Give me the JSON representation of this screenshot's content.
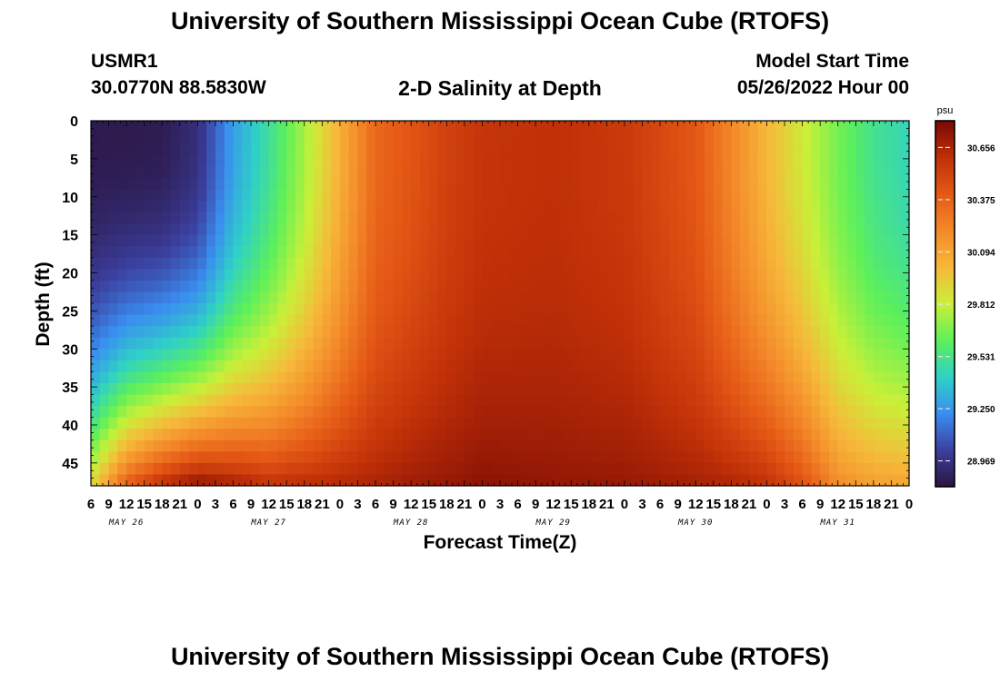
{
  "page": {
    "title": "University of Southern Mississippi Ocean Cube (RTOFS)",
    "footer_title": "University of Southern Mississippi Ocean Cube (RTOFS)",
    "station_id": "USMR1",
    "station_coords": "30.0770N  88.5830W",
    "subtitle": "2-D Salinity at Depth",
    "model_start_label": "Model Start Time",
    "model_start_value": "05/26/2022 Hour 00"
  },
  "colors": {
    "background": "#ffffff",
    "colormap": [
      "#2b1440",
      "#3b3f9e",
      "#3a8df0",
      "#2fd0c8",
      "#5cf05a",
      "#c9f038",
      "#f6b93a",
      "#f48a2a",
      "#e55a16",
      "#c03008",
      "#7a0a04"
    ]
  },
  "chart_data": {
    "type": "heatmap",
    "ylabel": "Depth (ft)",
    "xlabel": "Forecast Time(Z)",
    "ylim": [
      0,
      48
    ],
    "y_ticks": [
      0,
      5,
      10,
      15,
      20,
      25,
      30,
      35,
      40,
      45
    ],
    "x_range_hours": [
      6,
      144
    ],
    "x_tick_labels": [
      "6",
      "9",
      "12",
      "15",
      "18",
      "21",
      "0",
      "3",
      "6",
      "9",
      "12",
      "15",
      "18",
      "21",
      "0",
      "3",
      "6",
      "9",
      "12",
      "15",
      "18",
      "21",
      "0",
      "3",
      "6",
      "9",
      "12",
      "15",
      "18",
      "21",
      "0",
      "3",
      "6",
      "9",
      "12",
      "15",
      "18",
      "21",
      "0",
      "3",
      "6",
      "9",
      "12",
      "15",
      "18",
      "21",
      "0"
    ],
    "date_labels": [
      "MAY 26",
      "MAY 27",
      "MAY 28",
      "MAY 29",
      "MAY 30",
      "MAY 31"
    ],
    "colorbar": {
      "unit": "psu",
      "ticks": [
        30.656,
        30.375,
        30.094,
        29.812,
        29.531,
        29.25,
        28.969
      ],
      "range": [
        28.83,
        30.8
      ]
    },
    "time_hours": [
      6,
      12,
      18,
      24,
      30,
      36,
      42,
      48,
      54,
      60,
      66,
      72,
      84,
      96,
      108,
      114,
      120,
      126,
      132,
      138,
      144
    ],
    "surface_salinity": [
      28.86,
      28.86,
      28.87,
      28.95,
      29.28,
      29.5,
      29.75,
      30.05,
      30.35,
      30.43,
      30.52,
      30.58,
      30.6,
      30.56,
      30.42,
      30.22,
      30.02,
      29.84,
      29.66,
      29.52,
      29.45
    ],
    "bottom_salinity": [
      29.9,
      30.4,
      30.62,
      30.75,
      30.68,
      30.6,
      30.62,
      30.64,
      30.66,
      30.7,
      30.72,
      30.75,
      30.73,
      30.72,
      30.68,
      30.65,
      30.6,
      30.45,
      30.2,
      30.12,
      30.1
    ]
  }
}
